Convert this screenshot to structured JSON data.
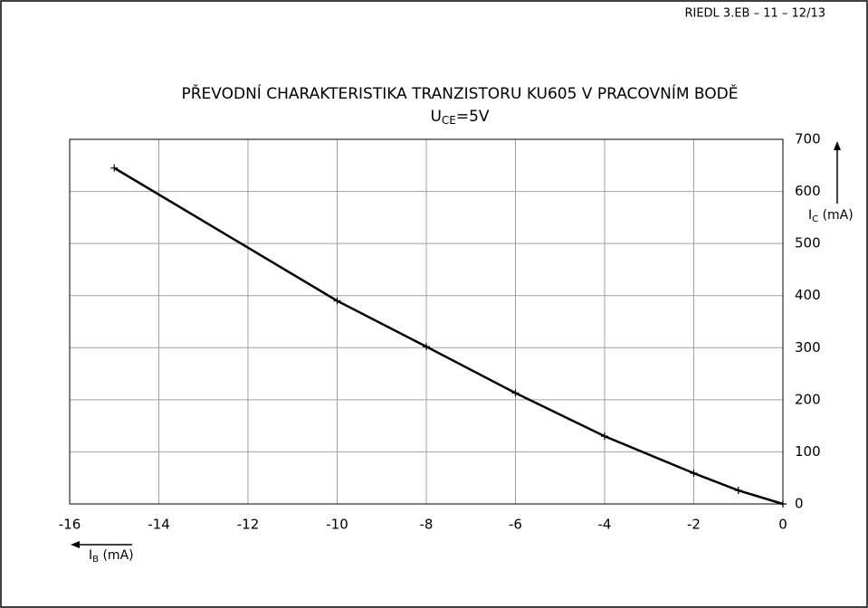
{
  "header": "RIEDL 3.EB – 11 – 12/13",
  "chart_data": {
    "type": "line",
    "title": "PŘEVODNÍ CHARAKTERISTIKA TRANZISTORU KU605 V PRACOVNÍM BODĚ",
    "subtitle": {
      "symbol": "U",
      "subscript": "CE",
      "rest": "=5V"
    },
    "x_label": {
      "symbol": "I",
      "subscript": "B",
      "rest": " (mA)"
    },
    "y_label": {
      "symbol": "I",
      "subscript": "C",
      "rest": " (mA)"
    },
    "x": [
      -15,
      -10,
      -8,
      -6,
      -4,
      -2,
      -1,
      0
    ],
    "series": [
      {
        "color": "#000000",
        "values": [
          645,
          390,
          302,
          213,
          130,
          59,
          26,
          0
        ]
      }
    ],
    "xlim": [
      -16,
      0
    ],
    "xticks": [
      -16,
      -14,
      -12,
      -10,
      -8,
      -6,
      -4,
      -2,
      0
    ],
    "ylim": [
      0,
      700
    ],
    "yticks": [
      0,
      100,
      200,
      300,
      400,
      500,
      600,
      700
    ],
    "grid": true
  }
}
